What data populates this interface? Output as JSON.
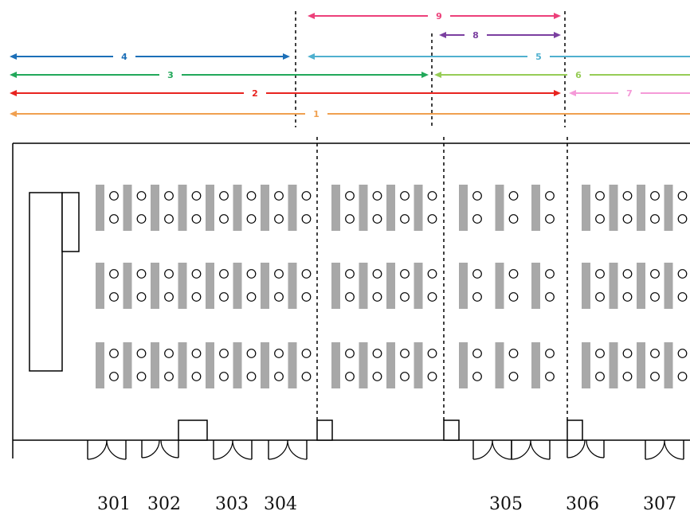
{
  "spans": [
    {
      "label": "9",
      "color": "#ec407a",
      "style": "both"
    },
    {
      "label": "8",
      "color": "#7b3fa0",
      "style": "both"
    },
    {
      "label": "4",
      "color": "#1c6fb8",
      "style": "both"
    },
    {
      "label": "5",
      "color": "#4fb0cf",
      "style": "left"
    },
    {
      "label": "3",
      "color": "#22a85a",
      "style": "both"
    },
    {
      "label": "6",
      "color": "#96cc55",
      "style": "left"
    },
    {
      "label": "2",
      "color": "#e8231f",
      "style": "both"
    },
    {
      "label": "7",
      "color": "#f59ad8",
      "style": "left"
    },
    {
      "label": "1",
      "color": "#f0a050",
      "style": "left"
    }
  ],
  "rooms": [
    "301",
    "302",
    "303",
    "304",
    "305",
    "306",
    "307"
  ],
  "colors": {
    "desk": "#a8a8a8",
    "wall": "#000000",
    "divider": "#000000"
  }
}
